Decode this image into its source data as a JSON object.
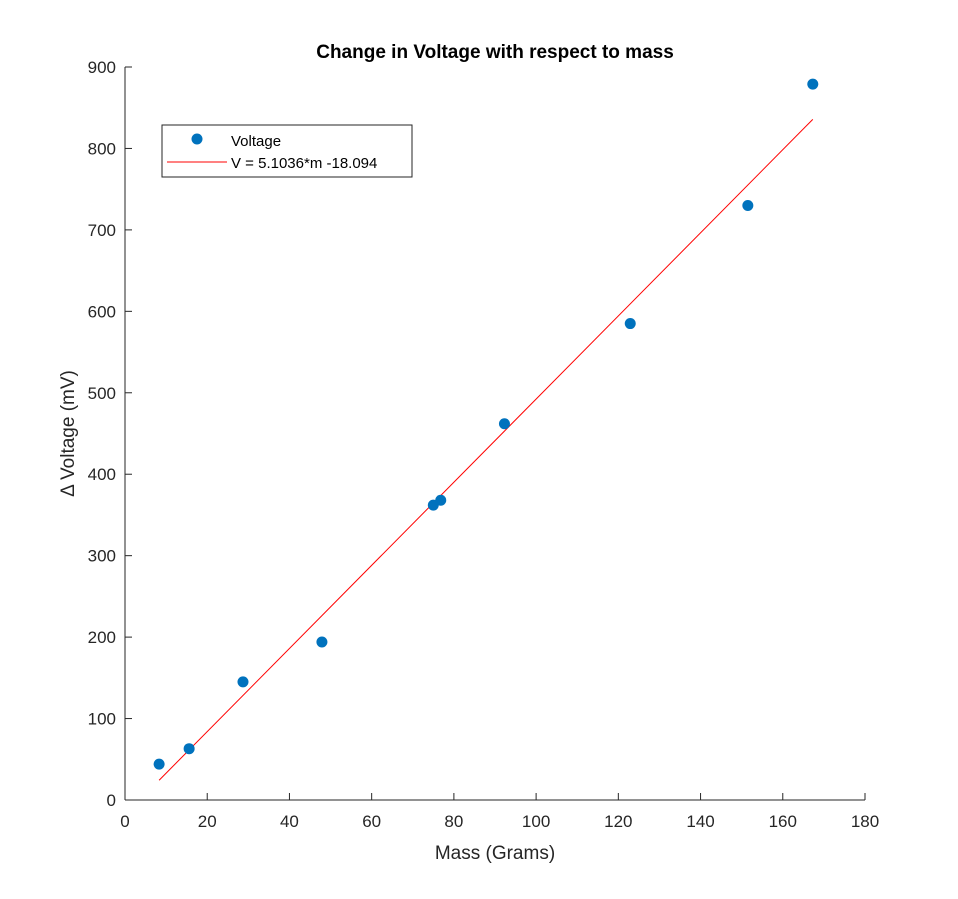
{
  "chart_data": {
    "type": "scatter",
    "title": "Change in Voltage with respect to mass",
    "xlabel": "Mass (Grams)",
    "ylabel": "Δ Voltage (mV)",
    "xlim": [
      0,
      180
    ],
    "ylim": [
      0,
      900
    ],
    "xticks": [
      0,
      20,
      40,
      60,
      80,
      100,
      120,
      140,
      160,
      180
    ],
    "yticks": [
      0,
      100,
      200,
      300,
      400,
      500,
      600,
      700,
      800,
      900
    ],
    "grid": false,
    "legend_position": "top-left",
    "series": [
      {
        "name": "Voltage",
        "kind": "points",
        "color": "#0072BD",
        "points": [
          {
            "x": 8.3,
            "y": 44
          },
          {
            "x": 15.6,
            "y": 63
          },
          {
            "x": 28.7,
            "y": 145
          },
          {
            "x": 47.9,
            "y": 194
          },
          {
            "x": 75.0,
            "y": 362
          },
          {
            "x": 76.8,
            "y": 368
          },
          {
            "x": 92.3,
            "y": 462
          },
          {
            "x": 122.9,
            "y": 585
          },
          {
            "x": 151.5,
            "y": 730
          },
          {
            "x": 167.3,
            "y": 879
          }
        ]
      },
      {
        "name": "V = 5.1036*m -18.094",
        "kind": "line",
        "color": "#FF0000",
        "slope": 5.1036,
        "intercept": -18.094,
        "x_range": [
          8.3,
          167.3
        ]
      }
    ]
  }
}
